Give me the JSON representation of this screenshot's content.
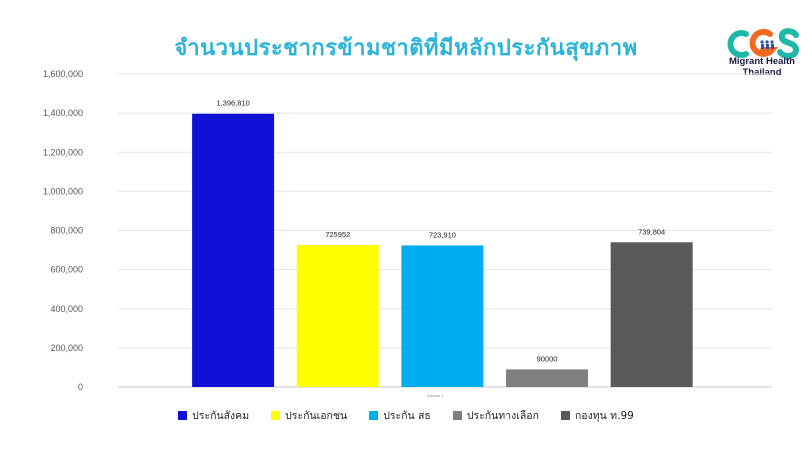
{
  "logo": {
    "letters": "CGS",
    "line1": "Migrant Health",
    "line2": "Thailand"
  },
  "chart_data": {
    "type": "bar",
    "title": "จำนวนประชากรข้ามชาติที่มีหลักประกันสุขภาพ",
    "xlabel": "",
    "ylabel": "",
    "x_caption": "Column 1",
    "ylim": [
      0,
      1600000
    ],
    "yticks": [
      0,
      200000,
      400000,
      600000,
      800000,
      1000000,
      1200000,
      1400000,
      1600000
    ],
    "ytick_labels": [
      "0",
      "200,000",
      "400,000",
      "600,000",
      "800,000",
      "1,000,000",
      "1,200,000",
      "1,400,000",
      "1,600,000"
    ],
    "grid": true,
    "legend_position": "bottom",
    "series": [
      {
        "name": "ประกันสังคม",
        "value": 1396810,
        "label": "1,396,810",
        "color": "#1010d6"
      },
      {
        "name": "ประกันเอกชน",
        "value": 725952,
        "label": "725952",
        "color": "#ffff00"
      },
      {
        "name": "ประกัน สธ",
        "value": 723910,
        "label": "723,910",
        "color": "#00aeef"
      },
      {
        "name": "ประกันทางเลือก",
        "value": 90000,
        "label": "90000",
        "color": "#7f7f7f"
      },
      {
        "name": "กองทุน ท.99",
        "value": 739804,
        "label": "739,804",
        "color": "#595959"
      }
    ]
  }
}
